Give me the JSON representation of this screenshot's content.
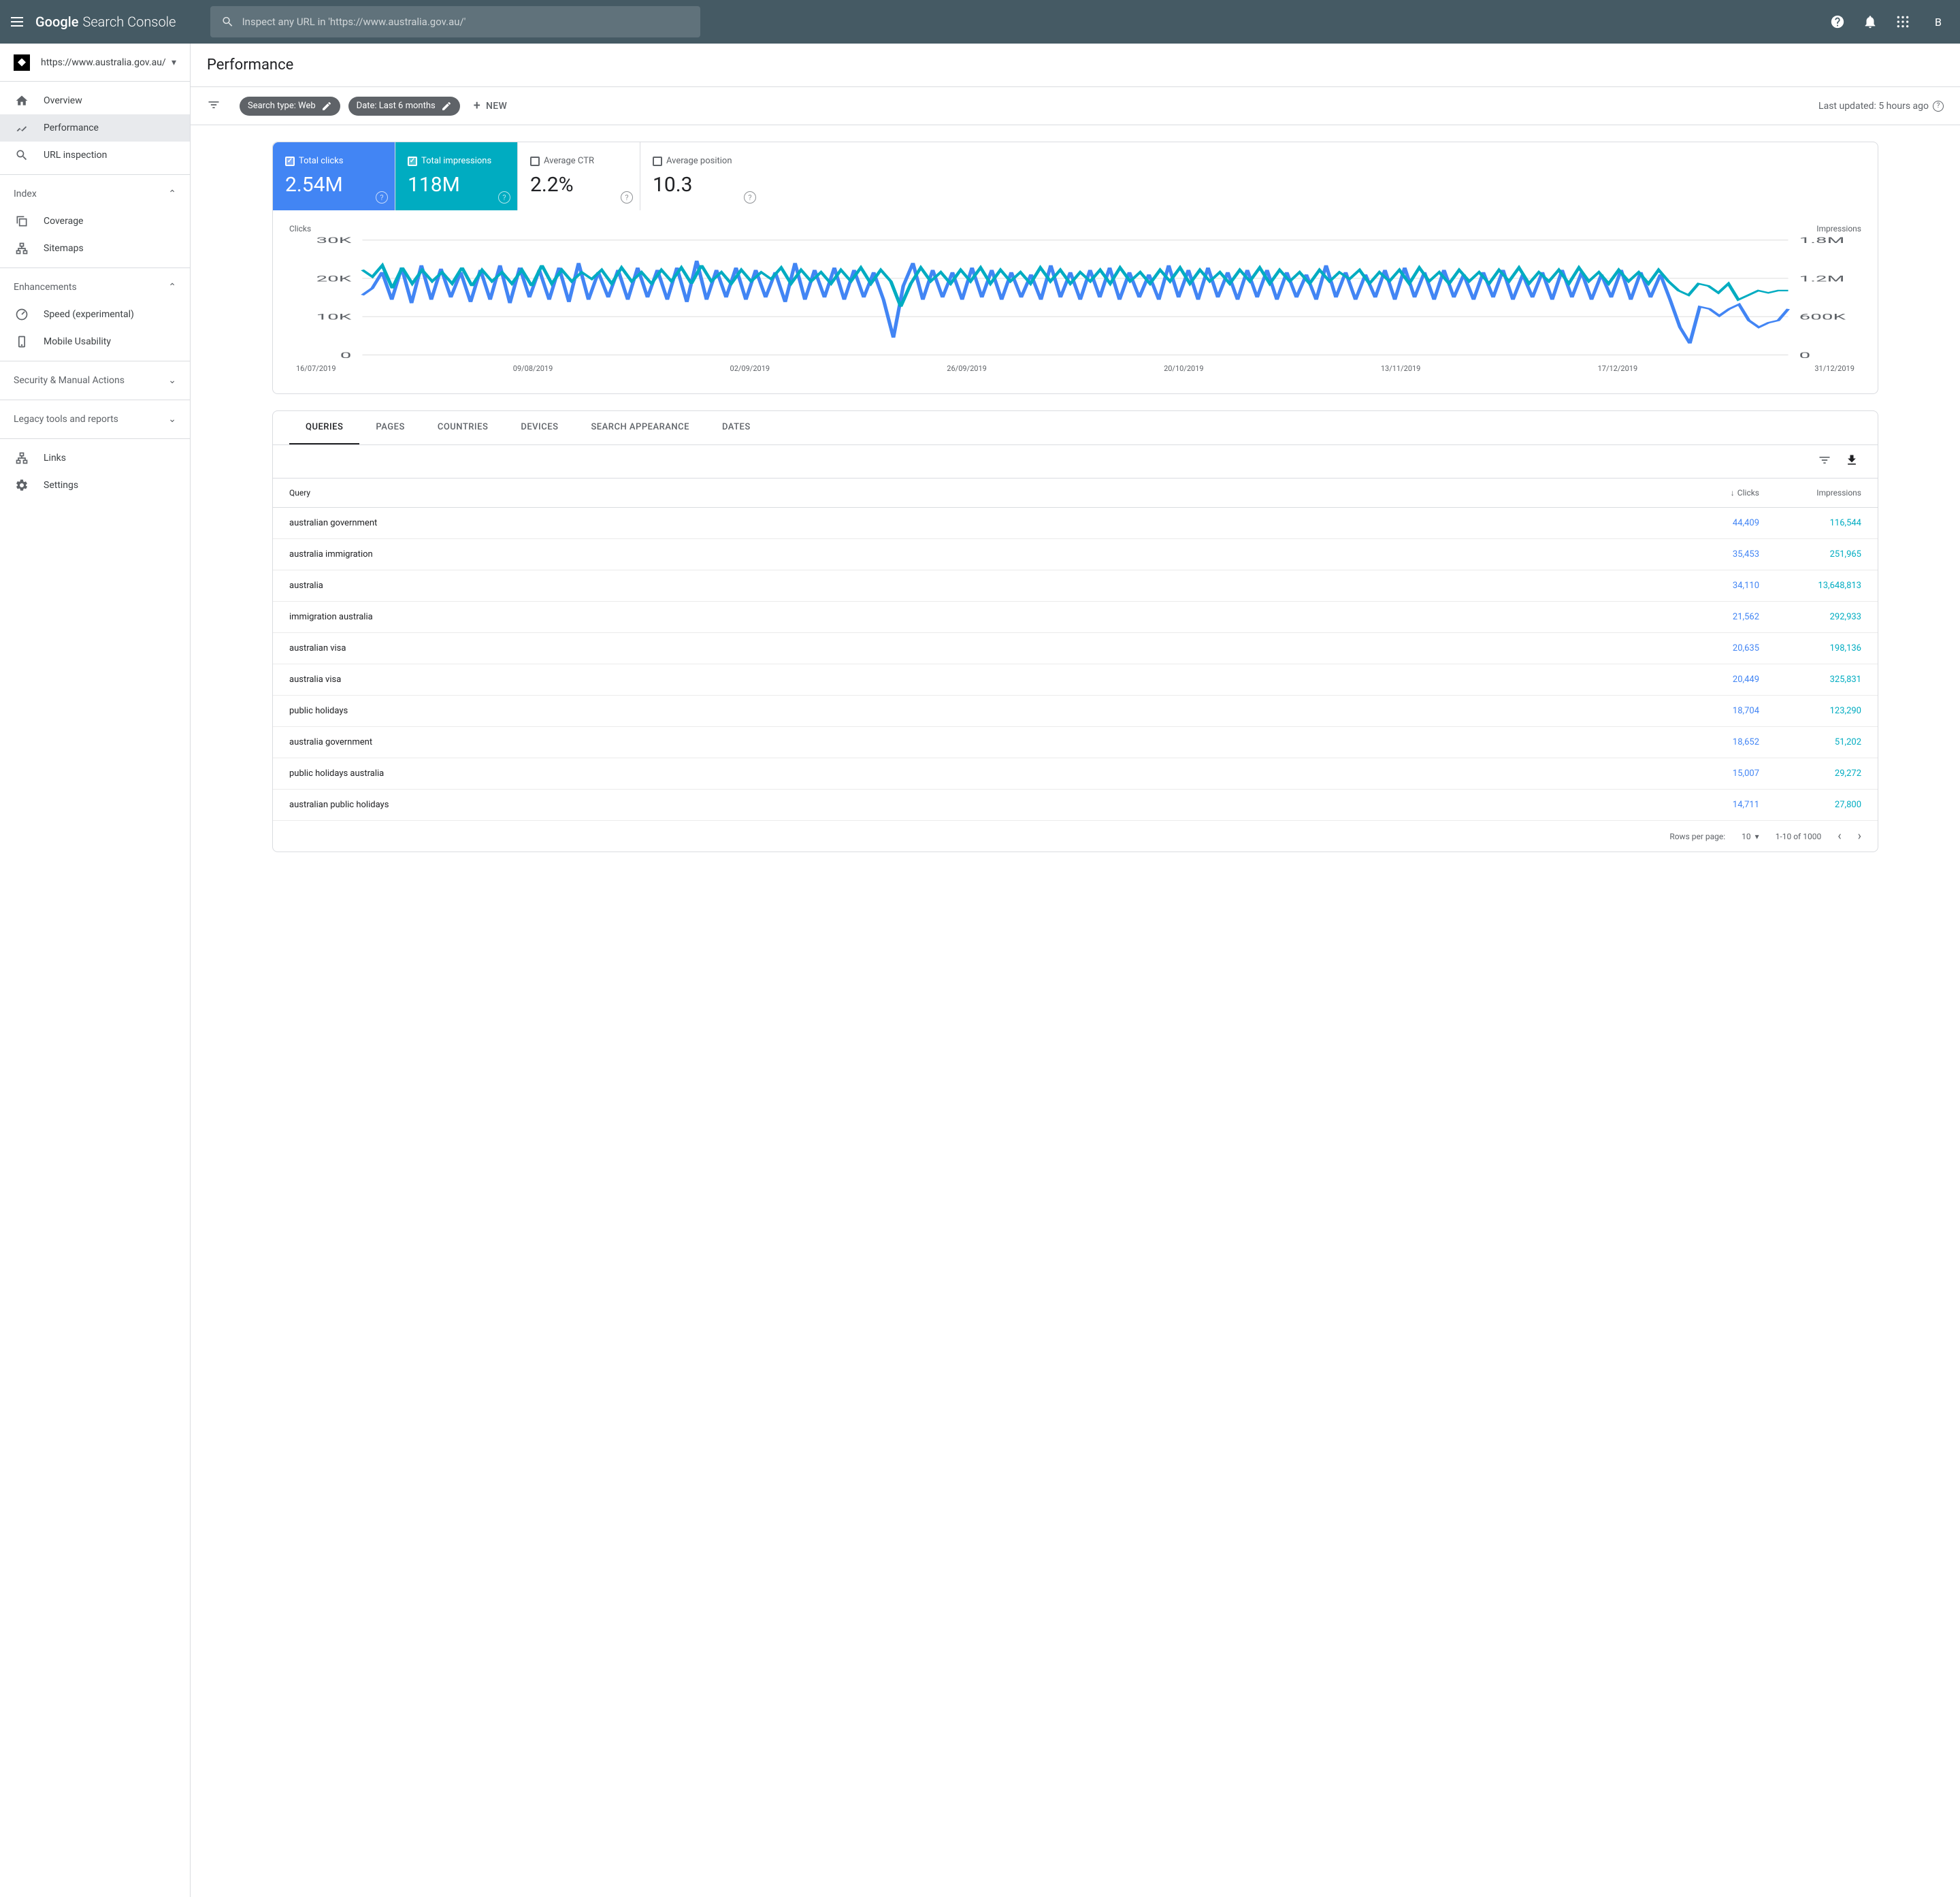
{
  "header": {
    "product_name_1": "Google",
    "product_name_2": "Search Console",
    "search_placeholder": "Inspect any URL in 'https://www.australia.gov.au/'",
    "user_initial": "B"
  },
  "sidebar": {
    "property_url": "https://www.australia.gov.au/",
    "primary": [
      {
        "label": "Overview",
        "icon": "home"
      },
      {
        "label": "Performance",
        "icon": "trend",
        "active": true
      },
      {
        "label": "URL inspection",
        "icon": "search"
      }
    ],
    "index": {
      "title": "Index",
      "items": [
        {
          "label": "Coverage",
          "icon": "copy"
        },
        {
          "label": "Sitemaps",
          "icon": "sitemap"
        }
      ]
    },
    "enhancements": {
      "title": "Enhancements",
      "items": [
        {
          "label": "Speed (experimental)",
          "icon": "speed"
        },
        {
          "label": "Mobile Usability",
          "icon": "mobile"
        }
      ]
    },
    "security": {
      "title": "Security & Manual Actions"
    },
    "legacy": {
      "title": "Legacy tools and reports"
    },
    "bottom": [
      {
        "label": "Links",
        "icon": "links"
      },
      {
        "label": "Settings",
        "icon": "gear"
      }
    ]
  },
  "page": {
    "title": "Performance",
    "chip1": "Search type: Web",
    "chip2": "Date: Last 6 months",
    "new_label": "NEW",
    "updated": "Last updated: 5 hours ago"
  },
  "metrics": {
    "clicks": {
      "label": "Total clicks",
      "value": "2.54M",
      "checked": true,
      "color": "#4285f4"
    },
    "impressions": {
      "label": "Total impressions",
      "value": "118M",
      "checked": true,
      "color": "#00acc1"
    },
    "ctr": {
      "label": "Average CTR",
      "value": "2.2%",
      "checked": false
    },
    "position": {
      "label": "Average position",
      "value": "10.3",
      "checked": false
    }
  },
  "chart": {
    "left_label": "Clicks",
    "right_label": "Impressions",
    "y_left": [
      "30K",
      "20K",
      "10K",
      "0"
    ],
    "y_right": [
      "1.8M",
      "1.2M",
      "600K",
      "0"
    ],
    "x_labels": [
      "16/07/2019",
      "09/08/2019",
      "02/09/2019",
      "26/09/2019",
      "20/10/2019",
      "13/11/2019",
      "17/12/2019",
      "31/12/2019"
    ],
    "clicks_color": "#4285f4",
    "impressions_color": "#00acc1",
    "grid_color": "#e0e0e0",
    "clicks_points": [
      52,
      58,
      72,
      48,
      76,
      45,
      78,
      48,
      75,
      50,
      72,
      46,
      74,
      48,
      78,
      45,
      76,
      50,
      74,
      48,
      76,
      46,
      80,
      48,
      72,
      50,
      74,
      48,
      76,
      50,
      74,
      48,
      76,
      46,
      82,
      48,
      74,
      50,
      76,
      48,
      74,
      50,
      72,
      46,
      80,
      48,
      74,
      50,
      76,
      48,
      74,
      50,
      72,
      48,
      15,
      60,
      80,
      48,
      74,
      50,
      72,
      48,
      76,
      50,
      74,
      48,
      72,
      50,
      70,
      48,
      78,
      50,
      72,
      48,
      74,
      50,
      76,
      48,
      72,
      50,
      70,
      48,
      78,
      50,
      74,
      48,
      76,
      50,
      72,
      48,
      74,
      50,
      74,
      48,
      72,
      50,
      70,
      48,
      78,
      50,
      72,
      48,
      70,
      50,
      74,
      48,
      76,
      50,
      72,
      48,
      74,
      50,
      70,
      48,
      72,
      50,
      74,
      48,
      70,
      50,
      72,
      48,
      74,
      50,
      72,
      48,
      70,
      50,
      74,
      48,
      72,
      50,
      70,
      48,
      24,
      10,
      42,
      40,
      34,
      40,
      44,
      30,
      24,
      28,
      30,
      40
    ],
    "impressions_points": [
      74,
      68,
      78,
      58,
      76,
      62,
      74,
      64,
      72,
      62,
      76,
      60,
      74,
      64,
      72,
      62,
      74,
      60,
      78,
      62,
      74,
      64,
      72,
      66,
      74,
      62,
      76,
      64,
      72,
      62,
      74,
      64,
      76,
      62,
      78,
      64,
      72,
      62,
      74,
      64,
      72,
      66,
      76,
      62,
      74,
      64,
      72,
      62,
      74,
      64,
      76,
      62,
      74,
      64,
      42,
      62,
      76,
      64,
      72,
      62,
      74,
      64,
      76,
      62,
      74,
      64,
      72,
      62,
      76,
      64,
      74,
      62,
      72,
      64,
      74,
      62,
      76,
      64,
      72,
      62,
      74,
      64,
      76,
      62,
      74,
      64,
      72,
      62,
      74,
      64,
      76,
      62,
      74,
      64,
      72,
      62,
      74,
      64,
      72,
      66,
      74,
      62,
      72,
      64,
      74,
      62,
      76,
      64,
      72,
      62,
      74,
      64,
      72,
      62,
      74,
      64,
      76,
      62,
      72,
      64,
      74,
      62,
      76,
      64,
      72,
      62,
      74,
      64,
      72,
      62,
      74,
      64,
      56,
      52,
      62,
      60,
      54,
      62,
      48,
      52,
      56,
      54,
      56,
      56
    ]
  },
  "tabs": [
    "QUERIES",
    "PAGES",
    "COUNTRIES",
    "DEVICES",
    "SEARCH APPEARANCE",
    "DATES"
  ],
  "active_tab": 0,
  "table": {
    "headers": {
      "query": "Query",
      "clicks": "Clicks",
      "impressions": "Impressions"
    },
    "rows": [
      {
        "query": "australian government",
        "clicks": "44,409",
        "impressions": "116,544"
      },
      {
        "query": "australia immigration",
        "clicks": "35,453",
        "impressions": "251,965"
      },
      {
        "query": "australia",
        "clicks": "34,110",
        "impressions": "13,648,813"
      },
      {
        "query": "immigration australia",
        "clicks": "21,562",
        "impressions": "292,933"
      },
      {
        "query": "australian visa",
        "clicks": "20,635",
        "impressions": "198,136"
      },
      {
        "query": "australia visa",
        "clicks": "20,449",
        "impressions": "325,831"
      },
      {
        "query": "public holidays",
        "clicks": "18,704",
        "impressions": "123,290"
      },
      {
        "query": "australia government",
        "clicks": "18,652",
        "impressions": "51,202"
      },
      {
        "query": "public holidays australia",
        "clicks": "15,007",
        "impressions": "29,272"
      },
      {
        "query": "australian public holidays",
        "clicks": "14,711",
        "impressions": "27,800"
      }
    ],
    "pagination": {
      "rows_label": "Rows per page:",
      "rows_value": "10",
      "range": "1-10 of 1000"
    }
  }
}
